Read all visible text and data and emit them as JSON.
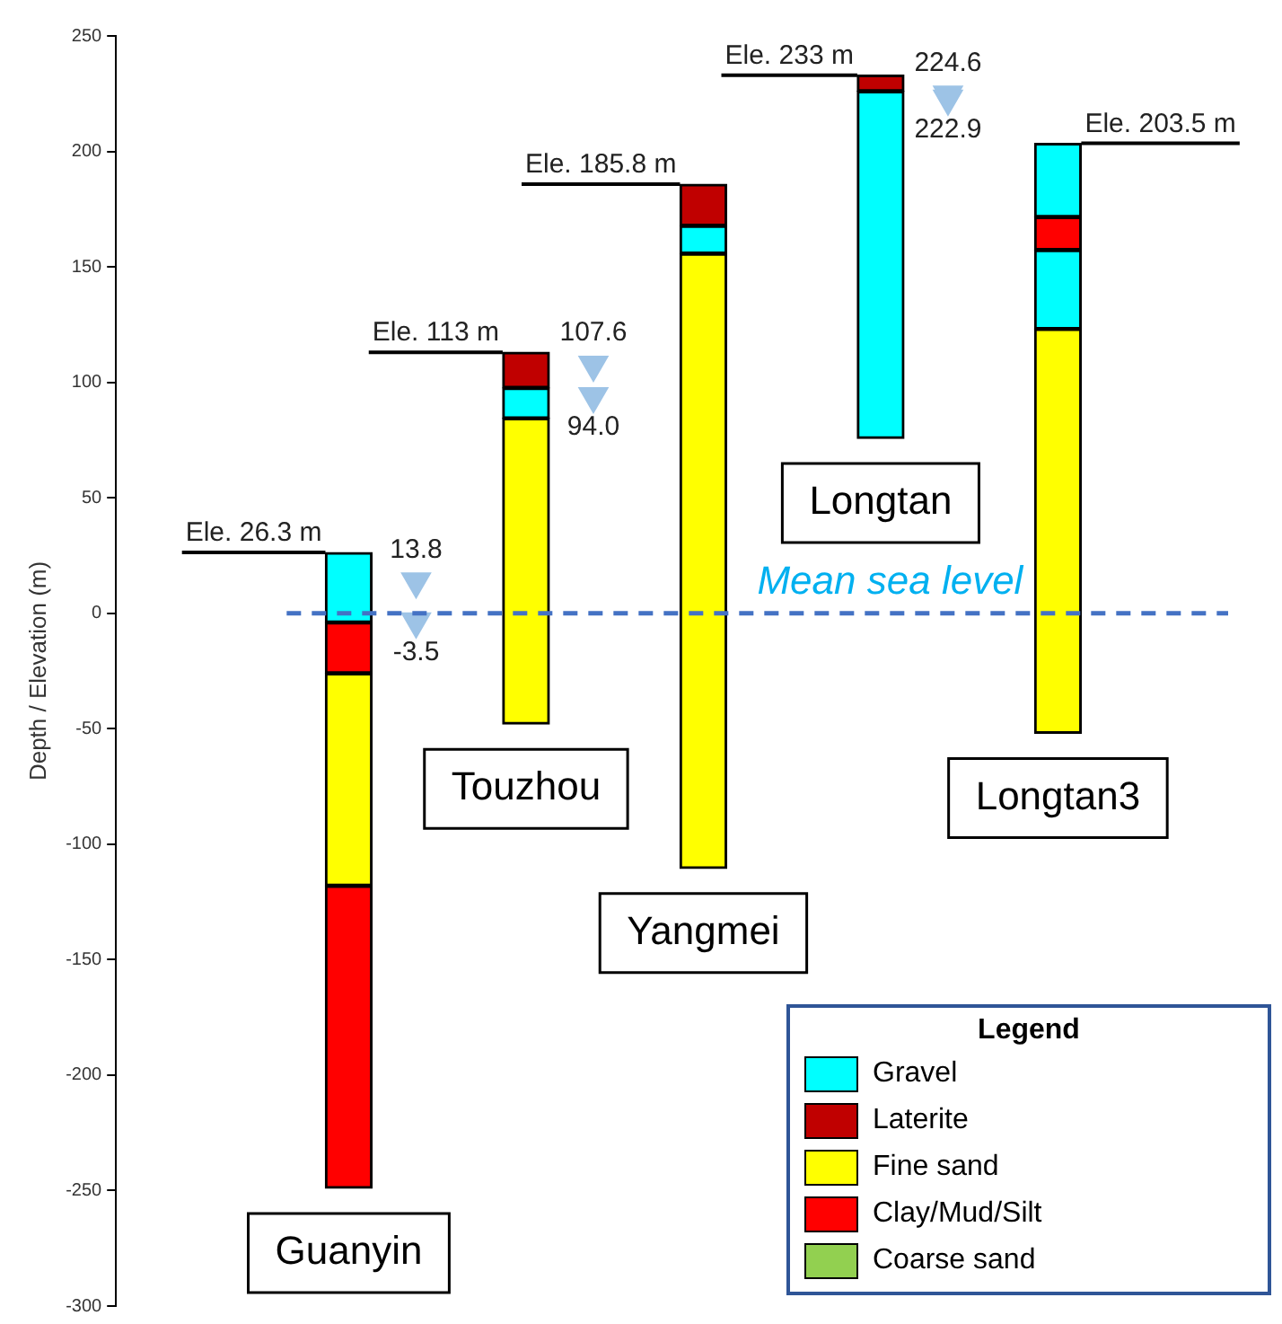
{
  "chart_data": {
    "type": "bar",
    "ylabel": "Depth / Elevation (m)",
    "legend_title": "Legend",
    "legend": "bottom right",
    "grid": false,
    "categories": [
      "Guanyin",
      "Touzhou",
      "Yangmei",
      "Longtan",
      "Longtan3"
    ],
    "ylim": [
      -300,
      250
    ],
    "yticks": [
      -300,
      -250,
      -200,
      -150,
      -100,
      -50,
      0,
      50,
      100,
      150,
      200,
      250
    ],
    "series": [
      {
        "name": "Gravel",
        "color": "#00ffff",
        "values": [
          30.3,
          13.2,
          12.1,
          150.3,
          31.9
        ],
        "base": [
          -4,
          84.4,
          155.7,
          75.7,
          171.6
        ]
      },
      {
        "name": "Laterite",
        "color": "#c00000",
        "values": [
          null,
          15.4,
          18,
          7,
          null
        ],
        "base": [
          null,
          97.6,
          167.8,
          226,
          null
        ]
      },
      {
        "name": "Fine sand",
        "color": "#ffff00",
        "values": [
          92,
          132.4,
          266.2,
          null,
          175.1
        ],
        "base": [
          -118,
          -48,
          -110.5,
          null,
          -52
        ]
      },
      {
        "name": "Clay/Mud/Silt",
        "color": "#ff0000",
        "values": [
          22,
          null,
          null,
          null,
          14.3
        ],
        "base": [
          -26,
          null,
          null,
          null,
          157.3
        ]
      },
      {
        "name": "Coarse sand",
        "color": "#92d050",
        "values": [
          null,
          null,
          null,
          null,
          null
        ],
        "base": [
          null,
          null,
          null,
          null,
          null
        ]
      },
      {
        "color": "#00ffff",
        "values": [
          null,
          null,
          null,
          null,
          34.2
        ],
        "base": [
          null,
          null,
          null,
          null,
          123.1
        ]
      },
      {
        "color": "#ff0000",
        "values": [
          131,
          null,
          null,
          null,
          null
        ],
        "base": [
          -249,
          null,
          null,
          null,
          null
        ]
      },
      {
        "type": "scatter",
        "marker": "triangle",
        "color": "#9dc3e6",
        "x": [
          "Guanyin",
          "Guanyin",
          "Touzhou",
          "Touzhou",
          "Longtan",
          "Longtan"
        ],
        "values": [
          13.8,
          -3.5,
          107.6,
          94.0,
          224.6,
          222.9
        ],
        "value_labels": [
          "13.8",
          "-3.5",
          "107.6",
          "94.0",
          "224.6",
          "222.9"
        ]
      }
    ],
    "ref_lines": [
      {
        "axis": "y",
        "value": 0,
        "label": "Mean sea level",
        "color": "#4472c4",
        "line_style": "dashed"
      }
    ],
    "annotations": [
      {
        "text": "Ele. 26.3 m",
        "x": "Guanyin",
        "y": 26.3
      },
      {
        "text": "Ele. 113 m",
        "x": "Touzhou",
        "y": 113
      },
      {
        "text": "Ele. 185.8 m",
        "x": "Yangmei",
        "y": 185.8
      },
      {
        "text": "Ele. 233 m",
        "x": "Longtan",
        "y": 233
      },
      {
        "text": "Ele. 203.5 m",
        "x": "Longtan3",
        "y": 203.5
      }
    ]
  }
}
